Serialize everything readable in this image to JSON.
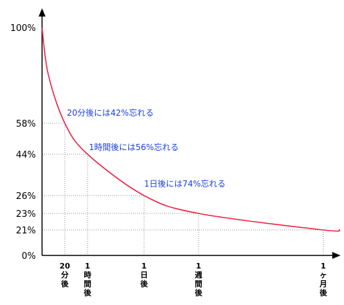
{
  "colors": {
    "curve": "#ee2244",
    "annotation": "#1a3fe0",
    "axis": "#000000",
    "guide": "#888888"
  },
  "chart_data": {
    "type": "line",
    "title": "",
    "xlabel": "",
    "ylabel": "",
    "grid": false,
    "ylim": [
      0,
      100
    ],
    "y_ticks": [
      "100%",
      "58%",
      "44%",
      "26%",
      "23%",
      "21%",
      "0%"
    ],
    "y_tick_values": [
      100,
      58,
      44,
      26,
      23,
      21,
      0
    ],
    "x_ticks": [
      {
        "label": [
          "20",
          "分",
          "後"
        ],
        "at": "20分後"
      },
      {
        "label": [
          "1",
          "時",
          "間",
          "後"
        ],
        "at": "1時間後"
      },
      {
        "label": [
          "1",
          "日",
          "後"
        ],
        "at": "1日後"
      },
      {
        "label": [
          "1",
          "週",
          "間",
          "後"
        ],
        "at": "1週間後"
      },
      {
        "label": [
          "1",
          "ヶ",
          "月",
          "後"
        ],
        "at": "1ヶ月後"
      }
    ],
    "series": [
      {
        "points": [
          {
            "x": "0",
            "y": 100
          },
          {
            "x": "20分後",
            "y": 58
          },
          {
            "x": "1時間後",
            "y": 44
          },
          {
            "x": "1日後",
            "y": 26
          },
          {
            "x": "1週間後",
            "y": 23
          },
          {
            "x": "1ヶ月後",
            "y": 21
          }
        ]
      }
    ],
    "annotations": [
      "20分後には42%忘れる",
      "1時間後には56%忘れる",
      "1日後には74%忘れる"
    ]
  }
}
